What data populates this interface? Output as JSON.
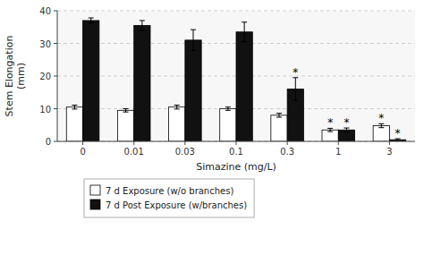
{
  "chart_data": {
    "type": "bar",
    "xlabel": "Simazine (mg/L)",
    "ylabel": "Stem Elongation\n(mm)",
    "categories": [
      "0",
      "0.01",
      "0.03",
      "0.1",
      "0.3",
      "1",
      "3"
    ],
    "series": [
      {
        "name": "7 d Exposure (w/o branches)",
        "color": "#ffffff",
        "values": [
          10.5,
          9.5,
          10.5,
          10.0,
          8.0,
          3.5,
          4.8
        ],
        "errors": [
          0.6,
          0.5,
          0.6,
          0.5,
          0.6,
          0.5,
          0.6
        ]
      },
      {
        "name": "7 d Post Exposure (w/branches)",
        "color": "#111111",
        "values": [
          37.0,
          35.5,
          31.0,
          33.5,
          16.0,
          3.5,
          0.5
        ],
        "errors": [
          0.8,
          1.5,
          3.2,
          3.0,
          3.5,
          0.6,
          0.3
        ]
      }
    ],
    "annotations": [
      {
        "text": "*",
        "series": "7 d Post Exposure (w/branches)",
        "category": "0.3"
      },
      {
        "text": "*",
        "series": "7 d Post Exposure (w/branches)",
        "category": "1"
      },
      {
        "text": "*",
        "series": "7 d Post Exposure (w/branches)",
        "category": "3"
      },
      {
        "text": "*",
        "series": "7 d Exposure (w/o branches)",
        "category": "1"
      },
      {
        "text": "*",
        "series": "7 d Exposure (w/o branches)",
        "category": "3"
      }
    ],
    "ylim": [
      0,
      40
    ],
    "yticks": [
      0,
      10,
      20,
      30,
      40
    ],
    "grid": true,
    "legend": "bottom"
  }
}
